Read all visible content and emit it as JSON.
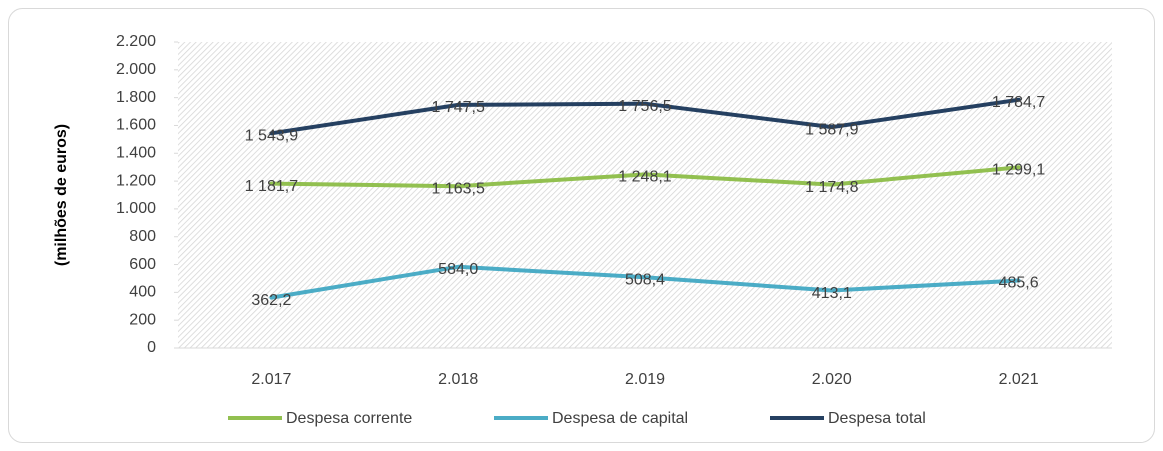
{
  "chart_data": {
    "type": "line",
    "y_label": "(milhões de euros)",
    "categories": [
      "2.017",
      "2.018",
      "2.019",
      "2.020",
      "2.021"
    ],
    "series": [
      {
        "name": "Despesa corrente",
        "color": "#92c050",
        "values": [
          1181.7,
          1163.5,
          1248.1,
          1174.8,
          1299.1
        ],
        "value_labels": [
          "1 181,7",
          "1 163,5",
          "1 248,1",
          "1 174,8",
          "1 299,1"
        ]
      },
      {
        "name": "Despesa de capital",
        "color": "#4bacc6",
        "values": [
          362.2,
          584.0,
          508.4,
          413.1,
          485.6
        ],
        "value_labels": [
          "362,2",
          "584,0",
          "508,4",
          "413,1",
          "485,6"
        ]
      },
      {
        "name": "Despesa total",
        "color": "#254061",
        "values": [
          1543.9,
          1747.5,
          1756.5,
          1587.9,
          1784.7
        ],
        "value_labels": [
          "1 543,9",
          "1 747,5",
          "1 756,5",
          "1 587,9",
          "1 784,7"
        ]
      }
    ],
    "ylim": [
      0,
      2200
    ],
    "yticks": [
      0,
      200,
      400,
      600,
      800,
      {
        "value": 1000,
        "label": "1.000"
      },
      {
        "value": 1200,
        "label": "1.200"
      },
      {
        "value": 1400,
        "label": "1.400"
      },
      {
        "value": 1600,
        "label": "1.600"
      },
      {
        "value": 1800,
        "label": "1.800"
      },
      {
        "value": 2000,
        "label": "2.000"
      },
      {
        "value": 2200,
        "label": "2.200"
      }
    ],
    "legend": "bottom"
  }
}
